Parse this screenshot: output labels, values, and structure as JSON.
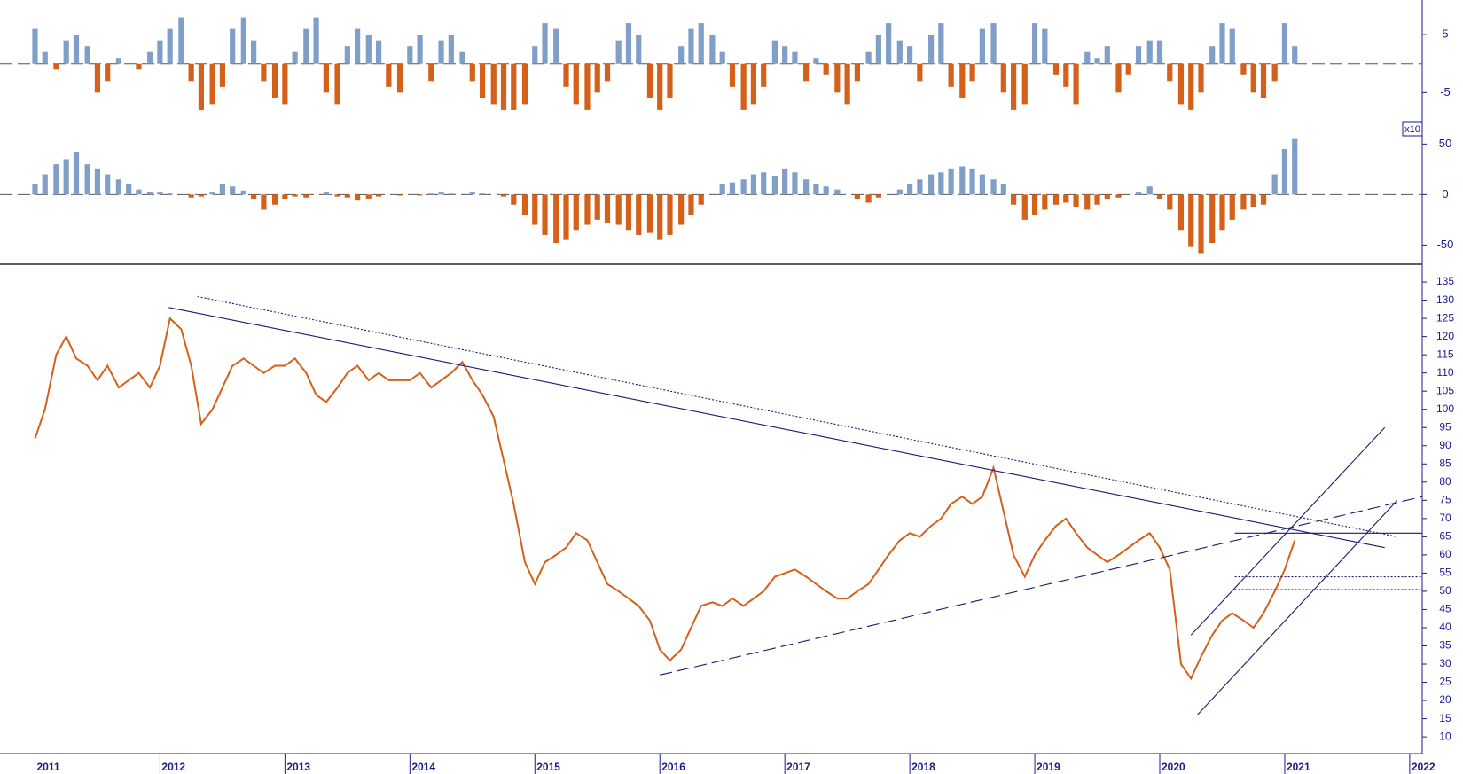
{
  "chart_data": [
    {
      "type": "bar",
      "ylim": [
        -9.7,
        11
      ],
      "yticks": [
        -5,
        5
      ],
      "colors": {
        "positive": "#7f9fc8",
        "negative": "#d4601a"
      },
      "values": [
        6,
        2,
        -1,
        4,
        5,
        3,
        -5,
        -3,
        1,
        0,
        -1,
        2,
        4,
        6,
        8,
        -3,
        -8,
        -7,
        -4,
        6,
        8,
        4,
        -3,
        -6,
        -7,
        2,
        6,
        8,
        -5,
        -7,
        3,
        6,
        5,
        4,
        -4,
        -5,
        3,
        5,
        -3,
        4,
        5,
        2,
        -3,
        -6,
        -7,
        -8,
        -8,
        -7,
        3,
        7,
        6,
        -4,
        -7,
        -8,
        -5,
        -3,
        4,
        7,
        5,
        -6,
        -8,
        -6,
        3,
        6,
        7,
        5,
        2,
        -4,
        -8,
        -7,
        -4,
        4,
        3,
        2,
        -3,
        1,
        -2,
        -5,
        -7,
        -3,
        2,
        5,
        7,
        4,
        3,
        -3,
        5,
        7,
        -4,
        -6,
        -3,
        6,
        7,
        -5,
        -8,
        -7,
        7,
        6,
        -2,
        -4,
        -7,
        2,
        1,
        3,
        -5,
        -2,
        3,
        4,
        4,
        -3,
        -7,
        -8,
        -5,
        3,
        7,
        6,
        -2,
        -5,
        -6,
        -3,
        7,
        3
      ]
    },
    {
      "type": "bar",
      "ylim": [
        -69,
        74
      ],
      "yticks": [
        -50,
        0,
        50
      ],
      "annotation": "x10",
      "colors": {
        "positive": "#7f9fc8",
        "negative": "#d4601a"
      },
      "values": [
        10,
        20,
        30,
        35,
        42,
        30,
        25,
        20,
        15,
        10,
        5,
        3,
        2,
        1,
        0,
        -3,
        -2,
        2,
        10,
        8,
        4,
        -5,
        -15,
        -10,
        -5,
        -2,
        -3,
        0,
        2,
        -2,
        -3,
        -6,
        -4,
        -2,
        0,
        -1,
        0,
        -1,
        1,
        2,
        1,
        0,
        2,
        1,
        0,
        -2,
        -10,
        -20,
        -30,
        -40,
        -48,
        -45,
        -35,
        -30,
        -25,
        -28,
        -30,
        -35,
        -40,
        -38,
        -45,
        -40,
        -30,
        -20,
        -10,
        0,
        10,
        12,
        15,
        20,
        22,
        18,
        25,
        22,
        15,
        10,
        8,
        5,
        0,
        -5,
        -8,
        -3,
        0,
        5,
        10,
        15,
        20,
        22,
        25,
        28,
        25,
        20,
        15,
        10,
        -10,
        -25,
        -20,
        -15,
        -10,
        -8,
        -12,
        -15,
        -10,
        -5,
        -3,
        0,
        2,
        8,
        -5,
        -15,
        -35,
        -52,
        -58,
        -48,
        -35,
        -25,
        -15,
        -12,
        -10,
        20,
        45,
        55
      ]
    },
    {
      "type": "line",
      "color": "#d4601a",
      "ylim": [
        5.4,
        139.4
      ],
      "yticks": [
        10,
        15,
        20,
        25,
        30,
        35,
        40,
        45,
        50,
        55,
        60,
        65,
        70,
        75,
        80,
        85,
        90,
        95,
        100,
        105,
        110,
        115,
        120,
        125,
        130,
        135
      ],
      "xlim": [
        2010.72,
        2022.1
      ],
      "xticks": [
        2011,
        2012,
        2013,
        2014,
        2015,
        2016,
        2017,
        2018,
        2019,
        2020,
        2021,
        2022
      ],
      "x": [
        2011.0,
        2011.08,
        2011.17,
        2011.25,
        2011.33,
        2011.42,
        2011.5,
        2011.58,
        2011.67,
        2011.75,
        2011.83,
        2011.92,
        2012.0,
        2012.08,
        2012.17,
        2012.25,
        2012.33,
        2012.42,
        2012.5,
        2012.58,
        2012.67,
        2012.75,
        2012.83,
        2012.92,
        2013.0,
        2013.08,
        2013.17,
        2013.25,
        2013.33,
        2013.42,
        2013.5,
        2013.58,
        2013.67,
        2013.75,
        2013.83,
        2013.92,
        2014.0,
        2014.08,
        2014.17,
        2014.25,
        2014.33,
        2014.42,
        2014.5,
        2014.58,
        2014.67,
        2014.75,
        2014.83,
        2014.92,
        2015.0,
        2015.08,
        2015.17,
        2015.25,
        2015.33,
        2015.42,
        2015.5,
        2015.58,
        2015.67,
        2015.75,
        2015.83,
        2015.92,
        2016.0,
        2016.08,
        2016.17,
        2016.25,
        2016.33,
        2016.42,
        2016.5,
        2016.58,
        2016.67,
        2016.75,
        2016.83,
        2016.92,
        2017.0,
        2017.08,
        2017.17,
        2017.25,
        2017.33,
        2017.42,
        2017.5,
        2017.58,
        2017.67,
        2017.75,
        2017.83,
        2017.92,
        2018.0,
        2018.08,
        2018.17,
        2018.25,
        2018.33,
        2018.42,
        2018.5,
        2018.58,
        2018.67,
        2018.75,
        2018.83,
        2018.92,
        2019.0,
        2019.08,
        2019.17,
        2019.25,
        2019.33,
        2019.42,
        2019.5,
        2019.58,
        2019.67,
        2019.75,
        2019.83,
        2019.92,
        2020.0,
        2020.08,
        2020.17,
        2020.25,
        2020.33,
        2020.42,
        2020.5,
        2020.58,
        2020.67,
        2020.75,
        2020.83,
        2020.92,
        2021.0,
        2021.08
      ],
      "values": [
        92,
        100,
        115,
        120,
        114,
        112,
        108,
        112,
        106,
        108,
        110,
        106,
        112,
        125,
        122,
        112,
        96,
        100,
        106,
        112,
        114,
        112,
        110,
        112,
        112,
        114,
        110,
        104,
        102,
        106,
        110,
        112,
        108,
        110,
        108,
        108,
        108,
        110,
        106,
        108,
        110,
        113,
        108,
        104,
        98,
        86,
        74,
        58,
        52,
        58,
        60,
        62,
        66,
        64,
        58,
        52,
        50,
        48,
        46,
        42,
        34,
        31,
        34,
        40,
        46,
        47,
        46,
        48,
        46,
        48,
        50,
        54,
        55,
        56,
        54,
        52,
        50,
        48,
        48,
        50,
        52,
        56,
        60,
        64,
        66,
        65,
        68,
        70,
        74,
        76,
        74,
        76,
        84,
        72,
        60,
        54,
        60,
        64,
        68,
        70,
        66,
        62,
        60,
        58,
        60,
        62,
        64,
        66,
        62,
        56,
        30,
        26,
        32,
        38,
        42,
        44,
        42,
        40,
        44,
        50,
        56,
        64
      ],
      "trendlines": [
        {
          "x": [
            2012.07,
            2021.8
          ],
          "y": [
            128,
            62
          ],
          "style": "solid"
        },
        {
          "x": [
            2012.3,
            2021.9
          ],
          "y": [
            131,
            65
          ],
          "style": "dotted"
        },
        {
          "x": [
            2016.0,
            2022.1
          ],
          "y": [
            27,
            76
          ],
          "style": "dashed"
        },
        {
          "x": [
            2020.25,
            2021.8
          ],
          "y": [
            38,
            95
          ],
          "style": "solid"
        },
        {
          "x": [
            2020.3,
            2021.9
          ],
          "y": [
            16,
            75
          ],
          "style": "solid"
        },
        {
          "x": [
            2020.6,
            2022.1
          ],
          "y": [
            66,
            66
          ],
          "style": "solid"
        },
        {
          "x": [
            2020.6,
            2022.1
          ],
          "y": [
            54,
            54
          ],
          "style": "dotted"
        },
        {
          "x": [
            2020.6,
            2022.1
          ],
          "y": [
            50.5,
            50.5
          ],
          "style": "dotted"
        }
      ],
      "line_color": "#1a1a6e"
    }
  ]
}
